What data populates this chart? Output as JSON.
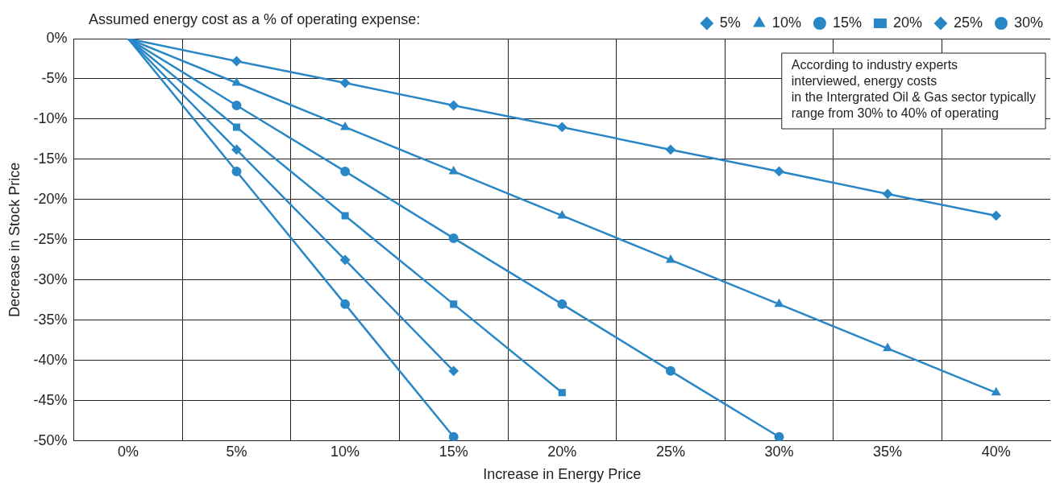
{
  "chart_data": {
    "type": "line",
    "legend_title": "Assumed energy cost as a % of operating expense:",
    "xlabel": "Increase in Energy Price",
    "ylabel": "Decrease in Stock Price",
    "annotations": [
      "According to industry experts\ninterviewed, energy costs\nin the Intergrated Oil & Gas sector typically\nrange from 30% to 40% of operating"
    ],
    "xlim": [
      -2.5,
      42.5
    ],
    "xticks": [
      {
        "value": 0,
        "label": "0%"
      },
      {
        "value": 2.5,
        "label": null
      },
      {
        "value": 5,
        "label": "5%"
      },
      {
        "value": 7.5,
        "label": null
      },
      {
        "value": 10,
        "label": "10%"
      },
      {
        "value": 12.5,
        "label": null
      },
      {
        "value": 15,
        "label": "15%"
      },
      {
        "value": 17.5,
        "label": null
      },
      {
        "value": 20,
        "label": "20%"
      },
      {
        "value": 22.5,
        "label": null
      },
      {
        "value": 25,
        "label": "25%"
      },
      {
        "value": 27.5,
        "label": null
      },
      {
        "value": 30,
        "label": "30%"
      },
      {
        "value": 32.5,
        "label": null
      },
      {
        "value": 35,
        "label": "35%"
      },
      {
        "value": 37.5,
        "label": null
      },
      {
        "value": 40,
        "label": "40%"
      }
    ],
    "ylim": [
      -50,
      0
    ],
    "yticks": [
      {
        "value": -50,
        "label": "-50%"
      },
      {
        "value": -45,
        "label": "-45%"
      },
      {
        "value": -40,
        "label": "-40%"
      },
      {
        "value": -35,
        "label": "-35%"
      },
      {
        "value": -30,
        "label": "-30%"
      },
      {
        "value": -25,
        "label": "-25%"
      },
      {
        "value": -20,
        "label": "-20%"
      },
      {
        "value": -15,
        "label": "-15%"
      },
      {
        "value": -10,
        "label": "-10%"
      },
      {
        "value": -5,
        "label": "-5%"
      },
      {
        "value": 0,
        "label": "0%"
      }
    ],
    "grid": true,
    "legend": "top right",
    "series": [
      {
        "name": "5%",
        "color": "#2a87c6",
        "marker": "diamond",
        "x": [
          0,
          5,
          10,
          15,
          20,
          25,
          30,
          35,
          40
        ],
        "values": [
          0,
          -2.8,
          -5.5,
          -8.3,
          -11,
          -13.8,
          -16.5,
          -19.3,
          -22
        ]
      },
      {
        "name": "10%",
        "color": "#2a87c6",
        "marker": "triangle",
        "x": [
          0,
          5,
          10,
          15,
          20,
          25,
          30,
          35,
          40
        ],
        "values": [
          0,
          -5.5,
          -11,
          -16.5,
          -22,
          -27.5,
          -33,
          -38.5,
          -44
        ]
      },
      {
        "name": "15%",
        "color": "#2a87c6",
        "marker": "circle",
        "x": [
          0,
          5,
          10,
          15,
          20,
          25,
          30
        ],
        "values": [
          0,
          -8.3,
          -16.5,
          -24.8,
          -33,
          -41.3,
          -49.5
        ]
      },
      {
        "name": "20%",
        "color": "#2a87c6",
        "marker": "square",
        "x": [
          0,
          5,
          10,
          15,
          20
        ],
        "values": [
          0,
          -11,
          -22,
          -33,
          -44
        ]
      },
      {
        "name": "25%",
        "color": "#2a87c6",
        "marker": "diamond",
        "x": [
          0,
          5,
          10,
          15
        ],
        "values": [
          0,
          -13.8,
          -27.5,
          -41.3
        ]
      },
      {
        "name": "30%",
        "color": "#2a87c6",
        "marker": "circle",
        "x": [
          0,
          5,
          10,
          15
        ],
        "values": [
          0,
          -16.5,
          -33,
          -49.5
        ]
      }
    ]
  }
}
